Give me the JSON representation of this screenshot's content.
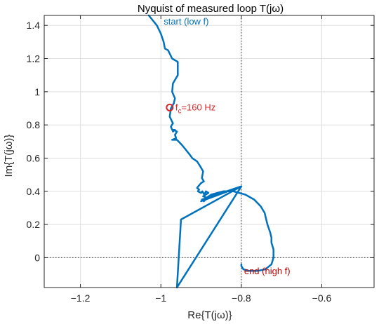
{
  "chart_data": {
    "type": "line",
    "title": "Nyquist of measured loop T(jω)",
    "xlabel": "Re{T(jω)}",
    "ylabel": "Im{T(jω)}",
    "xlim": [
      -1.29,
      -0.47
    ],
    "ylim": [
      -0.18,
      1.46
    ],
    "xticks": [
      -1.2,
      -1,
      -0.8,
      -0.6
    ],
    "xtick_labels": [
      "−1.2",
      "−1",
      "−0.8",
      "−0.6"
    ],
    "yticks": [
      0,
      0.2,
      0.4,
      0.6,
      0.8,
      1,
      1.2,
      1.4
    ],
    "ytick_labels": [
      "0",
      "0.2",
      "0.4",
      "0.6",
      "0.8",
      "1",
      "1.2",
      "1.4"
    ],
    "grid": true,
    "reference_lines": {
      "x": -0.8,
      "y": 0
    },
    "series": [
      {
        "color": "#0072BD",
        "x": [
          -1.03,
          -1.01,
          -1.0,
          -0.993,
          -0.99,
          -0.982,
          -0.972,
          -0.958,
          -0.958,
          -0.97,
          -0.972,
          -0.965,
          -0.968,
          -0.975,
          -0.978,
          -0.97,
          -0.975,
          -0.972,
          -0.965,
          -0.97,
          -0.968,
          -0.96,
          -0.965,
          -0.962,
          -0.972,
          -0.96,
          -0.948,
          -0.938,
          -0.928,
          -0.922,
          -0.91,
          -0.902,
          -0.895,
          -0.898,
          -0.893,
          -0.9,
          -0.907,
          -0.91,
          -0.905,
          -0.908,
          -0.9,
          -0.897,
          -0.892,
          -0.888,
          -0.882,
          -0.895,
          -0.885,
          -0.893,
          -0.898,
          -0.8,
          -0.95,
          -0.96,
          -0.8,
          -0.9,
          -0.875,
          -0.845,
          -0.82,
          -0.79,
          -0.768,
          -0.752,
          -0.742,
          -0.74,
          -0.735,
          -0.728,
          -0.725,
          -0.725,
          -0.72,
          -0.72,
          -0.725,
          -0.74,
          -0.76,
          -0.78,
          -0.795,
          -0.8,
          -0.8
        ],
        "y": [
          1.46,
          1.4,
          1.35,
          1.3,
          1.26,
          1.25,
          1.2,
          1.18,
          1.1,
          1.05,
          1.0,
          0.96,
          0.93,
          0.9,
          0.85,
          0.81,
          0.79,
          0.77,
          0.77,
          0.76,
          0.77,
          0.76,
          0.74,
          0.72,
          0.71,
          0.71,
          0.68,
          0.65,
          0.62,
          0.6,
          0.58,
          0.55,
          0.52,
          0.48,
          0.46,
          0.45,
          0.43,
          0.42,
          0.41,
          0.4,
          0.39,
          0.4,
          0.38,
          0.4,
          0.39,
          0.37,
          0.36,
          0.34,
          0.35,
          0.43,
          0.23,
          -0.18,
          0.43,
          0.34,
          0.38,
          0.4,
          0.4,
          0.38,
          0.35,
          0.31,
          0.27,
          0.25,
          0.2,
          0.15,
          0.12,
          0.09,
          0.05,
          0.0,
          -0.04,
          -0.07,
          -0.08,
          -0.08,
          -0.07,
          -0.05,
          -0.04
        ]
      }
    ],
    "marker": {
      "x": -0.978,
      "y": 0.905,
      "label_main": "f",
      "label_sub": "c",
      "label_rest": "=160 Hz",
      "color": "#D62728"
    },
    "annotations": [
      {
        "text": "start (low f)",
        "x": -1.0,
        "y": 1.405,
        "color": "#0072BD"
      },
      {
        "text": "end (high f)",
        "x": -0.8,
        "y": -0.1,
        "color": "#C00000"
      }
    ]
  }
}
